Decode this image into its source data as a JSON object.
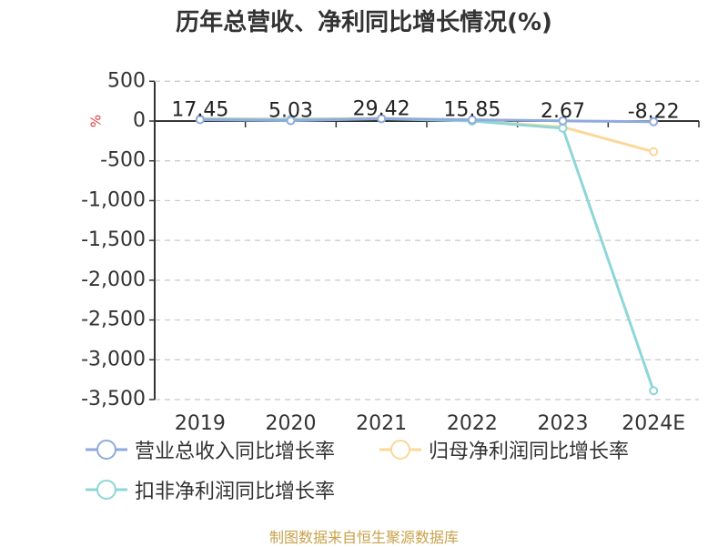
{
  "source_text": "制图数据来自恒生聚源数据库",
  "chart_data": {
    "type": "line",
    "title": "历年总营收、净利同比增长情况(%)",
    "ylabel": "%",
    "categories": [
      "2019",
      "2020",
      "2021",
      "2022",
      "2023",
      "2024E"
    ],
    "ylim": [
      -3500,
      500
    ],
    "yticks": [
      500,
      0,
      -500,
      -1000,
      -1500,
      -2000,
      -2500,
      -3000,
      -3500
    ],
    "ytick_labels": [
      "500",
      "0",
      "-500",
      "-1,000",
      "-1,500",
      "-2,000",
      "-2,500",
      "-3,000",
      "-3,500"
    ],
    "grid": true,
    "legend_position": "bottom-left",
    "series": [
      {
        "name": "营业总收入同比增长率",
        "color": "#8faadc",
        "values": [
          17.45,
          5.03,
          29.42,
          15.85,
          2.67,
          -8.22
        ],
        "labels": [
          "17.45",
          "5.03",
          "29.42",
          "15.85",
          "2.67",
          "-8.22"
        ]
      },
      {
        "name": "归母净利润同比增长率",
        "color": "#fbd89a",
        "values": [
          30,
          25,
          35,
          5,
          -75,
          -385
        ]
      },
      {
        "name": "扣非净利润同比增长率",
        "color": "#8ed6d8",
        "values": [
          25,
          20,
          30,
          0,
          -90,
          -3390
        ]
      }
    ]
  }
}
